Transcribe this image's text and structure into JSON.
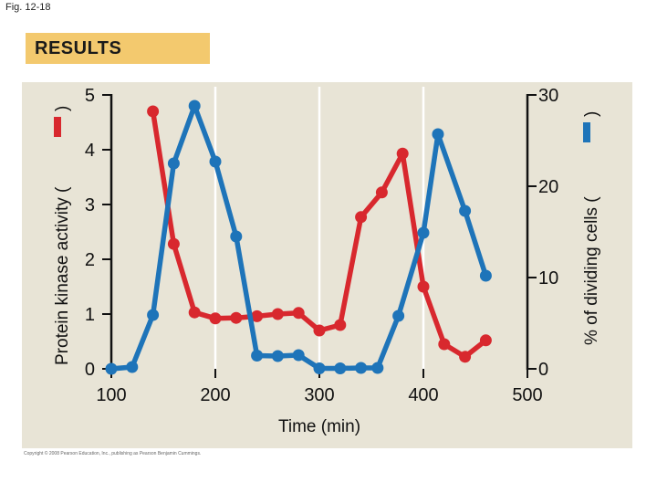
{
  "figure_label": "Fig. 12-18",
  "banner": "RESULTS",
  "copyright": "Copyright © 2008 Pearson Education, Inc., publishing as Pearson Benjamin Cummings.",
  "colors": {
    "panel_bg": "#e8e4d6",
    "banner_bg": "#f3c96e",
    "kinase_series": "#d8282e",
    "dividing_series": "#1e74b9",
    "gridline": "#ffffff"
  },
  "chart_data": {
    "type": "line",
    "xlabel": "Time (min)",
    "ylabel_left": "Protein kinase activity (",
    "ylabel_right": "% of dividing cells (",
    "xlim": [
      100,
      500
    ],
    "ylim_left": [
      0,
      5
    ],
    "ylim_right": [
      0,
      30
    ],
    "x_ticks": [
      "100",
      "200",
      "300",
      "400",
      "500"
    ],
    "y_left_ticks": [
      "0",
      "1",
      "2",
      "3",
      "4",
      "5"
    ],
    "y_right_ticks": [
      "0",
      "10",
      "20",
      "30"
    ],
    "grid": "vertical at x=200, 300, 400",
    "series": [
      {
        "axis": "left",
        "color": "#d8282e",
        "x": [
          140,
          160,
          180,
          200,
          220,
          240,
          260,
          280,
          300,
          320,
          340,
          360,
          380,
          400,
          420,
          440,
          460
        ],
        "y": [
          4.7,
          2.28,
          1.03,
          0.92,
          0.93,
          0.96,
          1.0,
          1.02,
          0.7,
          0.8,
          2.77,
          3.22,
          3.93,
          1.5,
          0.45,
          0.22,
          0.52
        ]
      },
      {
        "axis": "right",
        "color": "#1e74b9",
        "x": [
          100,
          120,
          140,
          160,
          180,
          200,
          220,
          240,
          260,
          280,
          300,
          320,
          340,
          356,
          376,
          400,
          414,
          440,
          460
        ],
        "y": [
          0,
          0.2,
          5.9,
          22.5,
          28.8,
          22.7,
          14.5,
          1.45,
          1.4,
          1.5,
          0.05,
          0.05,
          0.1,
          0.1,
          5.8,
          14.9,
          25.7,
          17.3,
          10.2
        ]
      }
    ]
  }
}
